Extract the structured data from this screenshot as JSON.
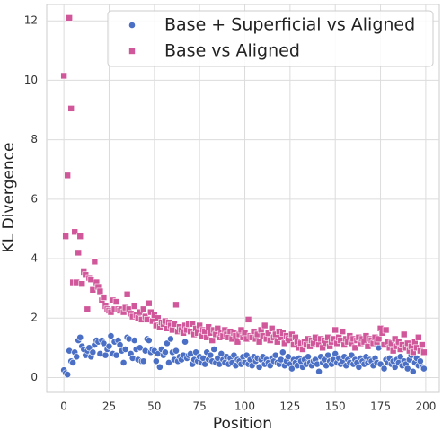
{
  "chart_data": {
    "type": "scatter",
    "xlabel": "Position",
    "ylabel": "KL Divergence",
    "xlim": [
      -9.5,
      207.5
    ],
    "ylim": [
      -0.5,
      12.55
    ],
    "xticks": [
      0,
      25,
      50,
      75,
      100,
      125,
      150,
      175,
      200
    ],
    "yticks": [
      0,
      2,
      4,
      6,
      8,
      10,
      12
    ],
    "grid": true,
    "legend": "upper right",
    "x": [
      0,
      1,
      2,
      3,
      4,
      5,
      6,
      7,
      8,
      9,
      10,
      11,
      12,
      13,
      14,
      15,
      16,
      17,
      18,
      19,
      20,
      21,
      22,
      23,
      24,
      25,
      26,
      27,
      28,
      29,
      30,
      31,
      32,
      33,
      34,
      35,
      36,
      37,
      38,
      39,
      40,
      41,
      42,
      43,
      44,
      45,
      46,
      47,
      48,
      49,
      50,
      51,
      52,
      53,
      54,
      55,
      56,
      57,
      58,
      59,
      60,
      61,
      62,
      63,
      64,
      65,
      66,
      67,
      68,
      69,
      70,
      71,
      72,
      73,
      74,
      75,
      76,
      77,
      78,
      79,
      80,
      81,
      82,
      83,
      84,
      85,
      86,
      87,
      88,
      89,
      90,
      91,
      92,
      93,
      94,
      95,
      96,
      97,
      98,
      99,
      100,
      101,
      102,
      103,
      104,
      105,
      106,
      107,
      108,
      109,
      110,
      111,
      112,
      113,
      114,
      115,
      116,
      117,
      118,
      119,
      120,
      121,
      122,
      123,
      124,
      125,
      126,
      127,
      128,
      129,
      130,
      131,
      132,
      133,
      134,
      135,
      136,
      137,
      138,
      139,
      140,
      141,
      142,
      143,
      144,
      145,
      146,
      147,
      148,
      149,
      150,
      151,
      152,
      153,
      154,
      155,
      156,
      157,
      158,
      159,
      160,
      161,
      162,
      163,
      164,
      165,
      166,
      167,
      168,
      169,
      170,
      171,
      172,
      173,
      174,
      175,
      176,
      177,
      178,
      179,
      180,
      181,
      182,
      183,
      184,
      185,
      186,
      187,
      188,
      189,
      190,
      191,
      192,
      193,
      194,
      195,
      196,
      197,
      198,
      199
    ],
    "series": [
      {
        "name": "Base + Superficial vs Aligned",
        "color": "#4a6fc4",
        "marker": "circle",
        "values": [
          0.25,
          0.15,
          0.1,
          0.9,
          0.55,
          0.5,
          0.85,
          0.7,
          1.25,
          1.35,
          1.05,
          0.95,
          0.75,
          0.9,
          1.0,
          0.7,
          0.85,
          1.1,
          1.25,
          1.2,
          0.8,
          1.25,
          1.15,
          0.75,
          0.95,
          1.05,
          1.4,
          0.8,
          1.2,
          0.75,
          1.25,
          1.1,
          0.9,
          0.5,
          0.95,
          1.35,
          1.3,
          0.8,
          0.65,
          1.25,
          0.95,
          0.6,
          1.0,
          0.55,
          0.55,
          0.9,
          1.3,
          1.25,
          0.85,
          0.95,
          0.9,
          0.55,
          0.8,
          0.35,
          0.95,
          0.75,
          0.85,
          1.15,
          0.5,
          1.3,
          0.85,
          0.6,
          0.9,
          0.55,
          0.7,
          0.6,
          0.75,
          1.2,
          0.65,
          0.75,
          0.8,
          0.45,
          0.6,
          0.85,
          0.55,
          0.7,
          0.5,
          0.65,
          0.45,
          0.85,
          0.6,
          0.75,
          0.55,
          0.95,
          0.5,
          0.65,
          0.45,
          0.8,
          0.6,
          0.5,
          0.7,
          0.45,
          0.65,
          0.5,
          0.75,
          0.4,
          0.6,
          0.55,
          0.45,
          0.7,
          0.5,
          0.75,
          0.45,
          0.6,
          0.4,
          0.7,
          0.55,
          0.65,
          0.35,
          0.6,
          0.7,
          0.45,
          0.6,
          0.5,
          0.4,
          0.65,
          0.55,
          0.75,
          0.5,
          0.45,
          0.6,
          0.85,
          0.4,
          0.55,
          0.7,
          0.45,
          0.3,
          0.6,
          0.5,
          0.4,
          0.65,
          0.55,
          0.35,
          0.6,
          0.45,
          0.7,
          0.5,
          0.4,
          0.55,
          0.6,
          0.45,
          0.2,
          0.7,
          0.5,
          0.6,
          0.4,
          0.75,
          0.55,
          0.45,
          0.6,
          0.8,
          0.5,
          0.65,
          0.45,
          0.55,
          0.7,
          0.4,
          0.6,
          0.5,
          0.75,
          0.45,
          0.6,
          0.5,
          0.35,
          0.65,
          0.55,
          0.45,
          0.7,
          0.5,
          0.6,
          0.55,
          0.4,
          0.65,
          0.5,
          1.0,
          0.45,
          1.55,
          0.3,
          0.6,
          0.5,
          0.65,
          0.45,
          0.55,
          0.35,
          0.6,
          0.5,
          0.7,
          0.4,
          0.55,
          0.45,
          0.3,
          0.6,
          0.75,
          0.2,
          0.5,
          0.65,
          0.4,
          0.55,
          0.35,
          0.3
        ]
      },
      {
        "name": "Base vs Aligned",
        "color": "#d0579a",
        "marker": "square",
        "values": [
          10.15,
          4.75,
          6.8,
          12.1,
          9.05,
          3.2,
          4.9,
          3.2,
          4.2,
          4.75,
          3.15,
          3.55,
          3.45,
          2.3,
          3.35,
          3.3,
          2.95,
          3.9,
          3.2,
          3.05,
          2.9,
          2.6,
          2.7,
          2.4,
          2.3,
          2.25,
          2.2,
          2.6,
          2.3,
          2.55,
          2.3,
          2.25,
          2.3,
          2.2,
          2.35,
          2.8,
          2.3,
          2.15,
          2.05,
          2.4,
          2.1,
          2.0,
          2.2,
          1.95,
          2.3,
          2.05,
          1.95,
          2.5,
          2.2,
          1.9,
          2.1,
          1.75,
          2.0,
          1.7,
          1.85,
          1.8,
          1.9,
          1.65,
          1.85,
          1.75,
          1.6,
          1.8,
          2.45,
          1.55,
          1.7,
          1.6,
          1.5,
          1.75,
          1.6,
          1.8,
          1.55,
          1.8,
          1.45,
          1.65,
          1.5,
          1.75,
          1.4,
          1.6,
          1.55,
          1.35,
          1.7,
          1.5,
          1.25,
          1.6,
          1.45,
          1.65,
          1.35,
          1.5,
          1.4,
          1.6,
          1.45,
          1.35,
          1.55,
          1.3,
          1.5,
          1.4,
          1.2,
          1.45,
          1.6,
          1.35,
          1.5,
          1.3,
          1.95,
          1.4,
          1.35,
          1.55,
          1.3,
          1.45,
          1.2,
          1.6,
          1.4,
          1.75,
          1.3,
          1.5,
          1.25,
          1.65,
          1.35,
          1.45,
          1.2,
          1.55,
          1.35,
          1.5,
          1.15,
          1.4,
          1.3,
          1.25,
          1.45,
          1.1,
          1.35,
          1.2,
          1.0,
          1.15,
          0.95,
          1.2,
          1.1,
          1.3,
          1.05,
          1.25,
          1.15,
          1.35,
          1.2,
          1.1,
          1.3,
          1.0,
          1.25,
          1.15,
          1.35,
          1.05,
          1.2,
          1.3,
          1.6,
          1.15,
          1.35,
          1.25,
          1.55,
          1.1,
          1.3,
          1.2,
          1.4,
          1.15,
          1.3,
          1.0,
          1.25,
          1.35,
          1.15,
          1.3,
          1.2,
          1.4,
          1.05,
          1.3,
          1.25,
          1.15,
          1.35,
          1.2,
          1.3,
          1.65,
          1.5,
          1.1,
          1.6,
          1.2,
          1.0,
          1.15,
          0.9,
          1.3,
          1.05,
          1.2,
          0.95,
          1.1,
          1.45,
          1.0,
          1.15,
          0.9,
          1.05,
          0.85,
          1.2,
          1.0,
          1.35,
          0.9,
          1.1,
          0.85
        ]
      }
    ]
  }
}
